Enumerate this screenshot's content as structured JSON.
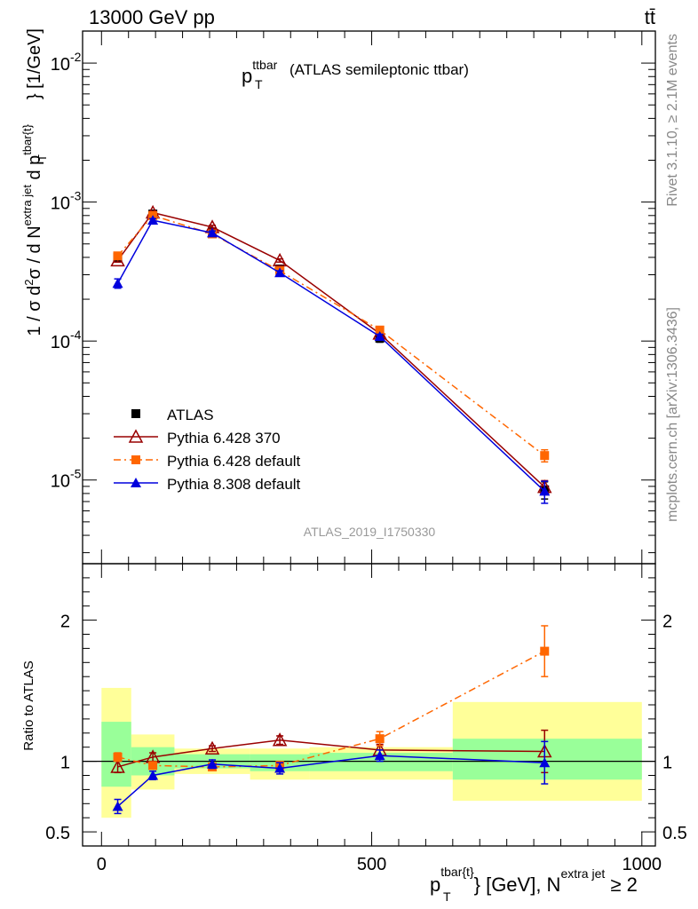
{
  "header": {
    "energy_label": "13000 GeV pp",
    "process_label": "tt̄"
  },
  "side_text": {
    "rivet": "Rivet 3.1.10, ≥ 2.1M events",
    "mcplots": "mcplots.cern.ch [arXiv:1306.3436]"
  },
  "chart_data": [
    {
      "type": "line",
      "panel": "main",
      "title": {
        "main": "p",
        "sup": "ttbar",
        "sub": "T",
        "rest": "(ATLAS semileptonic ttbar)"
      },
      "ylabel": "1 / σ d²σ / d N^extra jet d p_T^tbar{t} [1/GeV]",
      "ylabel_parts": {
        "a": "1 / σ d",
        "b": "2",
        "c": "σ / d N",
        "d": "extra jet",
        "e": " d p",
        "f": "T",
        "g": "tbar{t}",
        "h": "} [1/GeV]"
      },
      "yscale": "log",
      "ylim": [
        2.5e-06,
        0.017
      ],
      "yticks": [
        {
          "value": 0.01,
          "mantissa": "10",
          "exp": "-2"
        },
        {
          "value": 0.001,
          "mantissa": "10",
          "exp": "-3"
        },
        {
          "value": 0.0001,
          "mantissa": "10",
          "exp": "-4"
        },
        {
          "value": 1e-05,
          "mantissa": "10",
          "exp": "-5"
        }
      ],
      "xlim": [
        -35,
        1025
      ],
      "analysis_label": "ATLAS_2019_I1750330",
      "legend_position": "lower-left",
      "series": [
        {
          "name": "ATLAS",
          "color": "#000000",
          "marker": "square",
          "style": "none",
          "x": [
            30,
            95,
            205,
            330,
            515,
            820
          ],
          "y": [
            0.0004,
            0.00082,
            0.00061,
            0.00033,
            0.000105,
            8.5e-06
          ],
          "yerr": [
            3e-05,
            5e-05,
            3e-05,
            2e-05,
            7e-06,
            1.2e-06
          ]
        },
        {
          "name": "Pythia 6.428 370",
          "color": "#990000",
          "marker": "open-triangle",
          "style": "solid",
          "x": [
            30,
            95,
            205,
            330,
            515,
            820
          ],
          "y": [
            0.00038,
            0.00084,
            0.00066,
            0.00038,
            0.000113,
            8.9e-06
          ],
          "yerr": [
            1e-05,
            2e-05,
            2e-05,
            1e-05,
            4e-06,
            1e-06
          ]
        },
        {
          "name": "Pythia 6.428 default",
          "color": "#ff6600",
          "marker": "square",
          "style": "dashdot",
          "x": [
            30,
            95,
            205,
            330,
            515,
            820
          ],
          "y": [
            0.00041,
            0.0008,
            0.00059,
            0.00032,
            0.00012,
            1.5e-05
          ],
          "yerr": [
            1e-05,
            2e-05,
            2e-05,
            1e-05,
            4e-06,
            1.5e-06
          ]
        },
        {
          "name": "Pythia 8.308 default",
          "color": "#0000dd",
          "marker": "triangle",
          "style": "solid",
          "x": [
            30,
            95,
            205,
            330,
            515,
            820
          ],
          "y": [
            0.00026,
            0.00074,
            0.0006,
            0.00031,
            0.000108,
            8.3e-06
          ],
          "yerr": [
            2e-05,
            2e-05,
            2e-05,
            1e-05,
            4e-06,
            1.5e-06
          ]
        }
      ]
    },
    {
      "type": "line",
      "panel": "ratio",
      "ylabel": "Ratio to ATLAS",
      "xlabel_parts": {
        "a": "p",
        "b": "tbar{t}",
        "c": "T",
        "d": "} [GeV], N",
        "e": "extra jet",
        "f": " ≥ 2"
      },
      "ylim": [
        0.4,
        2.4
      ],
      "yticks": [
        0.5,
        1,
        2
      ],
      "yticklabels": [
        "0.5",
        "1",
        "2"
      ],
      "xlim": [
        -35,
        1025
      ],
      "xticks": [
        0,
        500,
        1000
      ],
      "xticklabels": [
        "0",
        "500",
        "1000"
      ],
      "bands": [
        {
          "x": [
            0,
            55
          ],
          "yellow": [
            0.6,
            1.52
          ],
          "green": [
            0.82,
            1.28
          ]
        },
        {
          "x": [
            55,
            135
          ],
          "yellow": [
            0.8,
            1.19
          ],
          "green": [
            0.9,
            1.1
          ]
        },
        {
          "x": [
            135,
            275
          ],
          "yellow": [
            0.91,
            1.09
          ],
          "green": [
            0.95,
            1.05
          ]
        },
        {
          "x": [
            275,
            385
          ],
          "yellow": [
            0.87,
            1.09
          ],
          "green": [
            0.93,
            1.05
          ]
        },
        {
          "x": [
            385,
            650
          ],
          "yellow": [
            0.87,
            1.1
          ],
          "green": [
            0.93,
            1.06
          ]
        },
        {
          "x": [
            650,
            1000
          ],
          "yellow": [
            0.72,
            1.42
          ],
          "green": [
            0.87,
            1.16
          ]
        }
      ],
      "series": [
        {
          "name": "Pythia 6.428 370",
          "color": "#990000",
          "marker": "open-triangle",
          "style": "solid",
          "x": [
            30,
            95,
            205,
            330,
            515,
            820
          ],
          "y": [
            0.96,
            1.03,
            1.09,
            1.15,
            1.08,
            1.07
          ],
          "yerr": [
            0.04,
            0.03,
            0.02,
            0.03,
            0.04,
            0.15
          ]
        },
        {
          "name": "Pythia 6.428 default",
          "color": "#ff6600",
          "marker": "square",
          "style": "dashdot",
          "x": [
            30,
            95,
            205,
            330,
            515,
            820
          ],
          "y": [
            1.03,
            0.97,
            0.96,
            0.97,
            1.16,
            1.78
          ],
          "yerr": [
            0.03,
            0.02,
            0.02,
            0.03,
            0.05,
            0.18
          ]
        },
        {
          "name": "Pythia 8.308 default",
          "color": "#0000dd",
          "marker": "triangle",
          "style": "solid",
          "x": [
            30,
            95,
            205,
            330,
            515,
            820
          ],
          "y": [
            0.68,
            0.9,
            0.98,
            0.95,
            1.04,
            0.99
          ],
          "yerr": [
            0.05,
            0.03,
            0.03,
            0.04,
            0.04,
            0.15
          ]
        }
      ]
    }
  ]
}
